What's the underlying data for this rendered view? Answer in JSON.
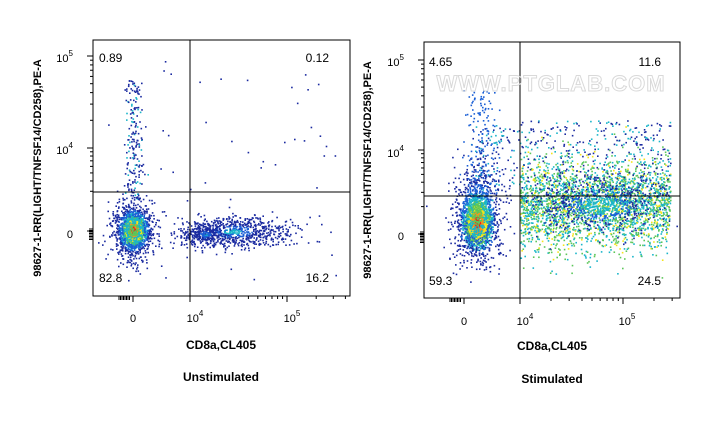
{
  "watermark": "WWW.PTGLAB.COM",
  "chart_data": [
    {
      "type": "scatter",
      "title": "Unstimulated",
      "xlabel": "CD8a,CL405",
      "ylabel": "98627-1-RR(LIGHT/TNFSF14/CD258),PE-A",
      "x_scale": "biexponential",
      "y_scale": "biexponential",
      "x_ticks": [
        {
          "value": 0,
          "base": "0",
          "exp": ""
        },
        {
          "value": 10000,
          "base": "10",
          "exp": "4"
        },
        {
          "value": 100000,
          "base": "10",
          "exp": "5"
        }
      ],
      "y_ticks": [
        {
          "value": 0,
          "base": "0",
          "exp": ""
        },
        {
          "value": 10000,
          "base": "10",
          "exp": "4"
        },
        {
          "value": 100000,
          "base": "10",
          "exp": "5"
        }
      ],
      "gates": {
        "x": 10000,
        "y": 3000
      },
      "quadrants": {
        "upper_left": "0.89",
        "upper_right": "0.12",
        "lower_left": "82.8",
        "lower_right": "16.2"
      },
      "populations": [
        {
          "name": "",
          "x_center": 0,
          "y_center": 0,
          "density": "high"
        },
        {
          "name": "",
          "x_center": 30000,
          "y_center": 0,
          "density": "low"
        }
      ]
    },
    {
      "type": "scatter",
      "title": "Stimulated",
      "xlabel": "CD8a,CL405",
      "ylabel": "98627-1-RR(LIGHT/TNFSF14/CD258),PE-A",
      "x_scale": "biexponential",
      "y_scale": "biexponential",
      "x_ticks": [
        {
          "value": 0,
          "base": "0",
          "exp": ""
        },
        {
          "value": 10000,
          "base": "10",
          "exp": "4"
        },
        {
          "value": 100000,
          "base": "10",
          "exp": "5"
        }
      ],
      "y_ticks": [
        {
          "value": 0,
          "base": "0",
          "exp": ""
        },
        {
          "value": 10000,
          "base": "10",
          "exp": "4"
        },
        {
          "value": 100000,
          "base": "10",
          "exp": "5"
        }
      ],
      "gates": {
        "x": 10000,
        "y": 3000
      },
      "quadrants": {
        "upper_left": "4.65",
        "upper_right": "11.6",
        "lower_left": "59.3",
        "lower_right": "24.5"
      },
      "populations": [
        {
          "name": "",
          "x_center": 1000,
          "y_center": 500,
          "density": "high"
        },
        {
          "name": "",
          "x_center": 40000,
          "y_center": 3000,
          "density": "medium"
        }
      ]
    }
  ]
}
